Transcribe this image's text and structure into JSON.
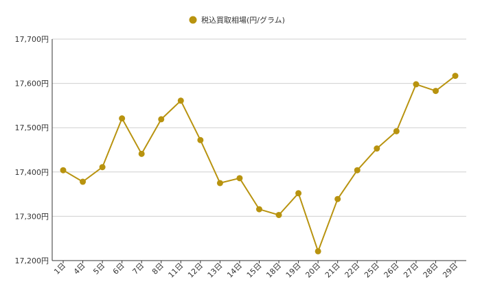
{
  "chart_data": {
    "type": "line",
    "title": "",
    "xlabel": "",
    "ylabel": "",
    "categories": [
      "1日",
      "4日",
      "5日",
      "6日",
      "7日",
      "8日",
      "11日",
      "12日",
      "13日",
      "14日",
      "15日",
      "18日",
      "19日",
      "20日",
      "21日",
      "22日",
      "25日",
      "26日",
      "27日",
      "28日",
      "29日"
    ],
    "series": [
      {
        "name": "税込買取相場(円/グラム)",
        "color": "#b8930f",
        "values": [
          17404,
          17378,
          17411,
          17521,
          17441,
          17519,
          17561,
          17472,
          17375,
          17386,
          17316,
          17303,
          17352,
          17221,
          17339,
          17404,
          17453,
          17492,
          17598,
          17583,
          17617
        ]
      }
    ],
    "ylim": [
      17200,
      17700
    ],
    "y_ticks": [
      17200,
      17300,
      17400,
      17500,
      17600,
      17700
    ],
    "y_tick_labels": [
      "17,200円",
      "17,300円",
      "17,400円",
      "17,500円",
      "17,600円",
      "17,700円"
    ],
    "grid": true,
    "legend_position": "top-center"
  }
}
